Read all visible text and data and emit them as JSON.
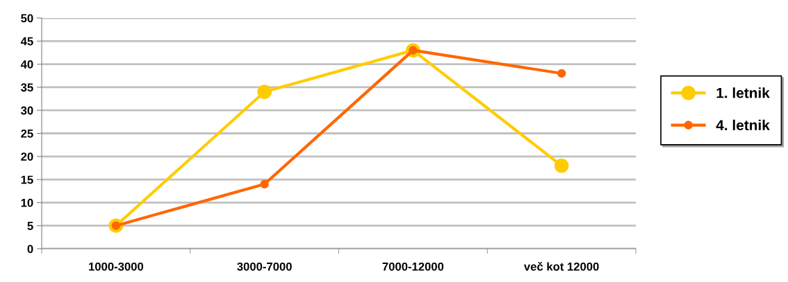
{
  "chart_data": {
    "type": "line",
    "categories": [
      "1000-3000",
      "3000-7000",
      "7000-12000",
      "več kot 12000"
    ],
    "series": [
      {
        "name": "1. letnik",
        "color": "#ffcc00",
        "values": [
          5,
          34,
          43,
          18
        ]
      },
      {
        "name": "4. letnik",
        "color": "#ff6600",
        "values": [
          5,
          14,
          43,
          38
        ]
      }
    ],
    "ylim": [
      0,
      50
    ],
    "yticks": [
      0,
      5,
      10,
      15,
      20,
      25,
      30,
      35,
      40,
      45,
      50
    ],
    "grid": "y",
    "legend": "right",
    "marker": "circle",
    "line_style": "solid"
  }
}
